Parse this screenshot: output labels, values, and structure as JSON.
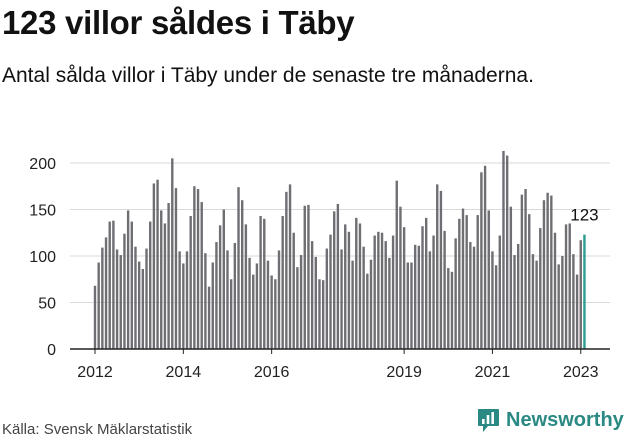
{
  "header": {
    "title": "123 villor såldes i Täby",
    "subtitle": "Antal sålda villor i Täby under de senaste tre månaderna."
  },
  "footer": {
    "source": "Källa: Svensk Mäklarstatistik",
    "brand": "Newsworthy",
    "brand_icon": "newsworthy-logo-icon"
  },
  "colors": {
    "bar": "#6e6e73",
    "highlight": "#2a9d8f",
    "grid": "#d9d9d9",
    "axis": "#222222",
    "brand": "#2a8a83"
  },
  "chart_data": {
    "type": "bar",
    "title": "123 villor såldes i Täby",
    "xlabel": "",
    "ylabel": "",
    "ylim": [
      0,
      220
    ],
    "yticks": [
      0,
      50,
      100,
      150,
      200
    ],
    "xtick_labels": [
      {
        "label": "2012",
        "index": 0
      },
      {
        "label": "2014",
        "index": 24
      },
      {
        "label": "2016",
        "index": 48
      },
      {
        "label": "2019",
        "index": 84
      },
      {
        "label": "2021",
        "index": 108
      },
      {
        "label": "2023",
        "index": 132
      }
    ],
    "start": "2012-01",
    "highlight_label": "123",
    "values": [
      68,
      93,
      109,
      120,
      137,
      138,
      107,
      101,
      124,
      149,
      137,
      110,
      94,
      86,
      108,
      137,
      178,
      182,
      149,
      135,
      157,
      205,
      173,
      105,
      92,
      105,
      143,
      175,
      172,
      158,
      103,
      67,
      93,
      115,
      133,
      150,
      106,
      75,
      114,
      174,
      160,
      134,
      98,
      80,
      92,
      143,
      140,
      95,
      79,
      75,
      106,
      143,
      169,
      177,
      125,
      88,
      101,
      154,
      155,
      116,
      99,
      75,
      74,
      108,
      123,
      148,
      156,
      107,
      134,
      126,
      95,
      141,
      135,
      110,
      81,
      96,
      122,
      126,
      125,
      116,
      98,
      122,
      181,
      153,
      131,
      93,
      93,
      112,
      111,
      132,
      141,
      105,
      122,
      177,
      170,
      127,
      87,
      83,
      119,
      140,
      151,
      144,
      115,
      110,
      144,
      190,
      197,
      149,
      105,
      90,
      122,
      213,
      208,
      153,
      101,
      113,
      166,
      172,
      145,
      102,
      95,
      130,
      160,
      168,
      165,
      125,
      91,
      100,
      134,
      135,
      102,
      80,
      117,
      123
    ]
  }
}
